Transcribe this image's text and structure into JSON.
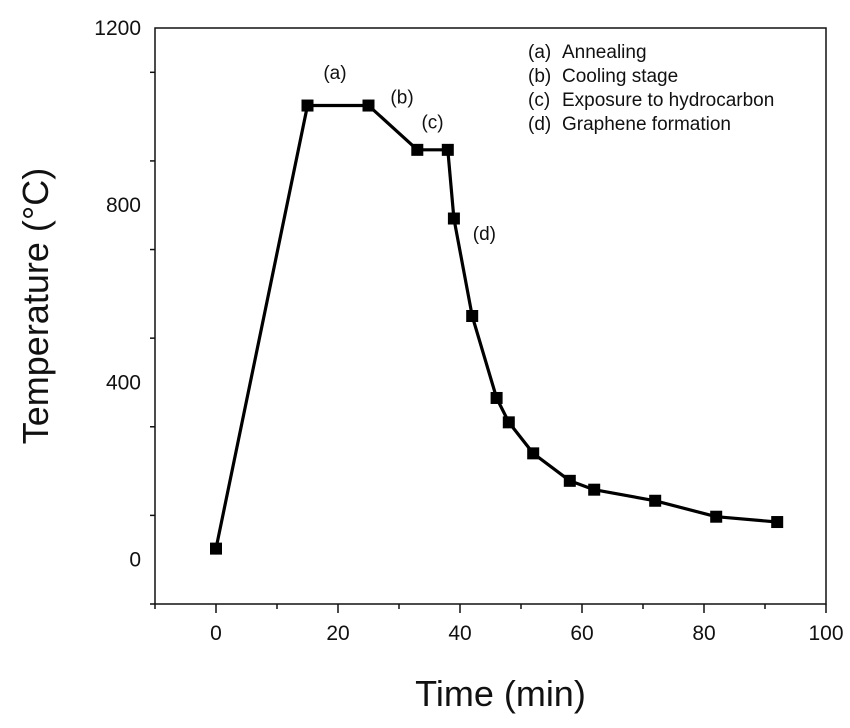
{
  "chart_data": {
    "type": "line",
    "xlabel": "Time (min)",
    "ylabel": "Temperature (°C)",
    "xlim": [
      -10,
      100
    ],
    "ylim": [
      -100,
      1200
    ],
    "xticks": [
      0,
      20,
      40,
      60,
      80,
      100
    ],
    "yticks": [
      0,
      400,
      800,
      1200
    ],
    "grid": false,
    "series": [
      {
        "color": "#000000",
        "marker": "square",
        "x": [
          0,
          15,
          25,
          33,
          38,
          39,
          42,
          46,
          48,
          52,
          58,
          62,
          72,
          82,
          92
        ],
        "y": [
          25,
          1025,
          1025,
          925,
          925,
          770,
          550,
          365,
          310,
          240,
          178,
          158,
          133,
          97,
          85
        ]
      }
    ],
    "annotations": [
      {
        "text": "(a)",
        "x": 19.5,
        "y": 1085
      },
      {
        "text": "(b)",
        "x": 30.5,
        "y": 1030
      },
      {
        "text": "(c)",
        "x": 35.5,
        "y": 973
      },
      {
        "text": "(d)",
        "x": 44,
        "y": 722
      }
    ],
    "legend": {
      "placement": "top-right",
      "entries": [
        {
          "key": "(a)",
          "label": "Annealing"
        },
        {
          "key": "(b)",
          "label": "Cooling stage"
        },
        {
          "key": "(c)",
          "label": "Exposure to hydrocarbon"
        },
        {
          "key": "(d)",
          "label": "Graphene formation"
        }
      ]
    }
  }
}
